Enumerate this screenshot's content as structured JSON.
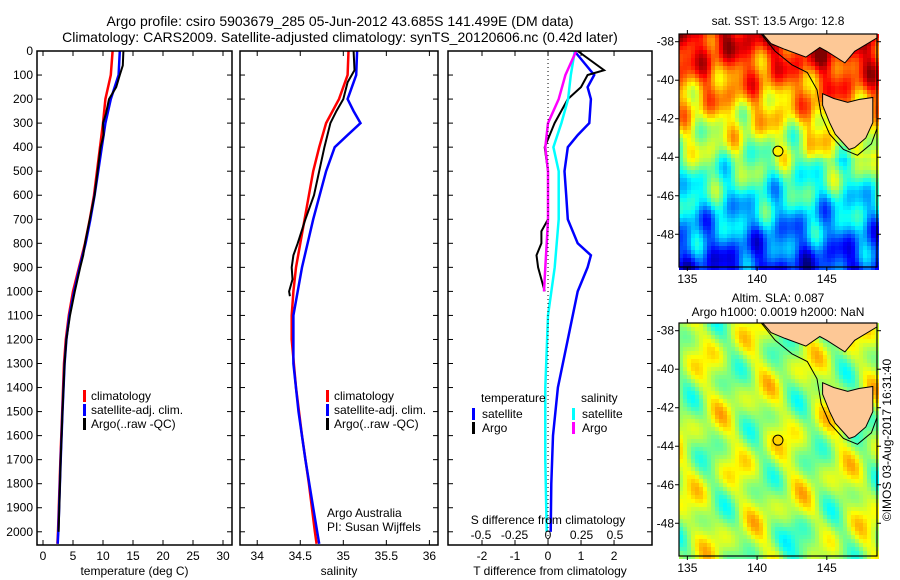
{
  "title_line1": "Argo profile: csiro 5903679_285 05-Jun-2012 43.685S 141.499E (DM data)",
  "title_line2": "Climatology: CARS2009. Satellite-adjusted climatology: synTS_20120606.nc (0.42d later)",
  "colors": {
    "climatology": "#ff0000",
    "satellite": "#0000ff",
    "argo": "#000000",
    "sal_satellite": "#00ffff",
    "sal_argo": "#ff00ff"
  },
  "chart_data": [
    {
      "type": "line",
      "name": "temperature-profile",
      "xlabel": "temperature (deg C)",
      "ylabel": "",
      "xlim": [
        -1,
        31.5
      ],
      "ylim": [
        2055,
        0
      ],
      "xticks": [
        0,
        5,
        10,
        15,
        20,
        25,
        30
      ],
      "yticks": [
        0,
        100,
        200,
        300,
        400,
        500,
        600,
        700,
        800,
        900,
        1000,
        1100,
        1200,
        1300,
        1400,
        1500,
        1600,
        1700,
        1800,
        1900,
        2000
      ],
      "legend": [
        "climatology",
        "satellite-adj. clim.",
        "Argo(..raw -QC)"
      ],
      "series": [
        {
          "name": "climatology",
          "color_key": "climatology",
          "points": [
            [
              0,
              11.6
            ],
            [
              100,
              11.3
            ],
            [
              200,
              10.4
            ],
            [
              300,
              10
            ],
            [
              400,
              9.5
            ],
            [
              500,
              9
            ],
            [
              600,
              8.5
            ],
            [
              700,
              7.8
            ],
            [
              800,
              7
            ],
            [
              900,
              6
            ],
            [
              1000,
              5
            ],
            [
              1100,
              4.3
            ],
            [
              1200,
              3.8
            ],
            [
              1300,
              3.5
            ],
            [
              1500,
              3.2
            ],
            [
              1700,
              2.9
            ],
            [
              2000,
              2.5
            ],
            [
              2050,
              2.4
            ]
          ]
        },
        {
          "name": "satellite-adj. clim.",
          "color_key": "satellite",
          "points": [
            [
              0,
              12.8
            ],
            [
              100,
              12.6
            ],
            [
              200,
              11.3
            ],
            [
              300,
              10.4
            ],
            [
              400,
              9.8
            ],
            [
              500,
              9.2
            ],
            [
              600,
              8.6
            ],
            [
              700,
              7.9
            ],
            [
              800,
              7.1
            ],
            [
              900,
              6.1
            ],
            [
              1000,
              5.2
            ],
            [
              1100,
              4.4
            ],
            [
              1200,
              3.9
            ],
            [
              1300,
              3.6
            ],
            [
              1500,
              3.25
            ],
            [
              1700,
              2.95
            ],
            [
              2000,
              2.55
            ],
            [
              2050,
              2.45
            ]
          ]
        },
        {
          "name": "Argo(..raw -QC)",
          "color_key": "argo",
          "points": [
            [
              0,
              13.4
            ],
            [
              60,
              13.3
            ],
            [
              100,
              12.8
            ],
            [
              150,
              12.2
            ],
            [
              200,
              11
            ],
            [
              260,
              10.5
            ],
            [
              300,
              10
            ],
            [
              350,
              10.1
            ],
            [
              400,
              9.6
            ],
            [
              500,
              9.1
            ],
            [
              600,
              8.6
            ],
            [
              700,
              7.8
            ],
            [
              800,
              7
            ],
            [
              850,
              6.7
            ],
            [
              900,
              6.2
            ],
            [
              1000,
              5.3
            ],
            [
              1100,
              4.5
            ],
            [
              1200,
              3.9
            ],
            [
              1300,
              3.6
            ],
            [
              1500,
              3.25
            ],
            [
              1700,
              2.95
            ],
            [
              2000,
              2.6
            ]
          ]
        }
      ]
    },
    {
      "type": "line",
      "name": "salinity-profile",
      "xlabel": "salinity",
      "ylabel": "",
      "xlim": [
        33.8,
        36.1
      ],
      "ylim": [
        2055,
        0
      ],
      "xticks": [
        34,
        34.5,
        35,
        35.5,
        36
      ],
      "legend": [
        "climatology",
        "satellite-adj. clim.",
        "Argo(..raw -QC)"
      ],
      "annotation": [
        "Argo Australia",
        "PI: Susan Wijffels"
      ],
      "series": [
        {
          "name": "climatology",
          "color_key": "climatology",
          "points": [
            [
              0,
              35.06
            ],
            [
              100,
              35.05
            ],
            [
              200,
              34.95
            ],
            [
              300,
              34.8
            ],
            [
              400,
              34.72
            ],
            [
              500,
              34.65
            ],
            [
              600,
              34.6
            ],
            [
              700,
              34.55
            ],
            [
              800,
              34.5
            ],
            [
              900,
              34.45
            ],
            [
              1000,
              34.42
            ],
            [
              1100,
              34.4
            ],
            [
              1200,
              34.4
            ],
            [
              1400,
              34.45
            ],
            [
              1600,
              34.52
            ],
            [
              1800,
              34.6
            ],
            [
              2000,
              34.67
            ],
            [
              2050,
              34.69
            ]
          ]
        },
        {
          "name": "satellite-adj. clim.",
          "color_key": "satellite",
          "points": [
            [
              0,
              35.16
            ],
            [
              100,
              35.15
            ],
            [
              150,
              35.1
            ],
            [
              200,
              35.05
            ],
            [
              250,
              35.12
            ],
            [
              300,
              35.2
            ],
            [
              350,
              35.05
            ],
            [
              400,
              34.9
            ],
            [
              500,
              34.8
            ],
            [
              700,
              34.65
            ],
            [
              900,
              34.52
            ],
            [
              1100,
              34.42
            ],
            [
              1300,
              34.42
            ],
            [
              1500,
              34.48
            ],
            [
              1700,
              34.56
            ],
            [
              1900,
              34.65
            ],
            [
              2050,
              34.72
            ]
          ]
        },
        {
          "name": "Argo(..raw -QC)",
          "color_key": "argo",
          "points": [
            [
              0,
              35.12
            ],
            [
              80,
              35.13
            ],
            [
              130,
              35.05
            ],
            [
              200,
              35.0
            ],
            [
              250,
              34.92
            ],
            [
              300,
              34.85
            ],
            [
              400,
              34.78
            ],
            [
              500,
              34.72
            ],
            [
              600,
              34.66
            ],
            [
              700,
              34.56
            ],
            [
              800,
              34.47
            ],
            [
              850,
              34.42
            ],
            [
              900,
              34.4
            ],
            [
              950,
              34.41
            ],
            [
              1000,
              34.37
            ],
            [
              1020,
              34.38
            ]
          ]
        }
      ]
    },
    {
      "type": "line",
      "name": "difference-profile",
      "xlabel": "T difference from climatology",
      "x2label": "S difference from climatology",
      "xlim": [
        -3.03,
        3.15
      ],
      "x2lim": [
        -0.5,
        0.5
      ],
      "ylim": [
        2055,
        0
      ],
      "xticks": [
        -2,
        -1,
        0,
        1,
        2
      ],
      "x2ticks": [
        "-0.5",
        "-0.25",
        "0",
        "0.25",
        "0.5"
      ],
      "legend": {
        "temperature_heading": "temperature",
        "salinity_heading": "salinity",
        "items": [
          "satellite",
          "Argo",
          "satellite",
          "Argo"
        ]
      },
      "series": [
        {
          "name": "T satellite",
          "color_key": "satellite",
          "axis": "T",
          "points": [
            [
              0,
              0.8
            ],
            [
              50,
              1.1
            ],
            [
              100,
              1.4
            ],
            [
              150,
              1.2
            ],
            [
              200,
              1.3
            ],
            [
              300,
              1.25
            ],
            [
              350,
              0.9
            ],
            [
              400,
              0.6
            ],
            [
              500,
              0.5
            ],
            [
              600,
              0.55
            ],
            [
              700,
              0.6
            ],
            [
              800,
              0.9
            ],
            [
              850,
              1.3
            ],
            [
              900,
              1.2
            ],
            [
              1000,
              0.9
            ],
            [
              1200,
              0.6
            ],
            [
              1400,
              0.3
            ],
            [
              1600,
              0.15
            ],
            [
              1800,
              0.1
            ],
            [
              2000,
              0.08
            ]
          ]
        },
        {
          "name": "T Argo",
          "color_key": "argo",
          "axis": "T",
          "points": [
            [
              0,
              0.9
            ],
            [
              80,
              1.7
            ],
            [
              100,
              1.2
            ],
            [
              150,
              1.0
            ],
            [
              200,
              0.6
            ],
            [
              300,
              0.2
            ],
            [
              400,
              -0.1
            ],
            [
              500,
              0
            ],
            [
              600,
              0
            ],
            [
              700,
              0
            ],
            [
              750,
              -0.2
            ],
            [
              800,
              -0.2
            ],
            [
              850,
              -0.35
            ],
            [
              900,
              -0.3
            ],
            [
              950,
              -0.2
            ],
            [
              1000,
              -0.1
            ]
          ]
        },
        {
          "name": "S satellite",
          "color_key": "sal_satellite",
          "axis": "S",
          "points": [
            [
              0,
              0.2
            ],
            [
              100,
              0.17
            ],
            [
              200,
              0.15
            ],
            [
              300,
              0.1
            ],
            [
              350,
              0.07
            ],
            [
              400,
              0.04
            ],
            [
              500,
              0.08
            ],
            [
              700,
              0.08
            ],
            [
              900,
              0.05
            ],
            [
              1100,
              0.0
            ],
            [
              1400,
              -0.02
            ],
            [
              1700,
              -0.02
            ],
            [
              2000,
              -0.01
            ]
          ]
        },
        {
          "name": "S Argo",
          "color_key": "sal_argo",
          "axis": "S",
          "points": [
            [
              0,
              0.21
            ],
            [
              100,
              0.13
            ],
            [
              200,
              0.08
            ],
            [
              300,
              0.0
            ],
            [
              400,
              -0.02
            ],
            [
              500,
              0
            ],
            [
              600,
              0.0
            ],
            [
              700,
              0
            ],
            [
              800,
              -0.01
            ],
            [
              900,
              -0.02
            ],
            [
              1000,
              -0.03
            ]
          ]
        }
      ]
    },
    {
      "type": "heatmap",
      "name": "sst-map",
      "title": "sat. SST: 13.5 Argo: 12.8",
      "xlim": [
        134.4,
        148.6
      ],
      "ylim": [
        -49.7,
        -37.6
      ],
      "xticks": [
        135,
        140,
        145
      ],
      "yticks": [
        -38,
        -40,
        -42,
        -44,
        -46,
        -48
      ],
      "marker": [
        141.499,
        -43.685
      ]
    },
    {
      "type": "heatmap",
      "name": "sla-map",
      "title": "Altim. SLA: 0.087",
      "subtitle": "Argo h1000: 0.0019 h2000: NaN",
      "xlim": [
        134.4,
        148.6
      ],
      "ylim": [
        -49.7,
        -37.6
      ],
      "xticks": [
        135,
        140,
        145
      ],
      "yticks": [
        -38,
        -40,
        -42,
        -44,
        -46,
        -48
      ],
      "marker": [
        141.499,
        -43.685
      ]
    }
  ],
  "credit": "©IMOS 03-Aug-2017 16:31:40"
}
